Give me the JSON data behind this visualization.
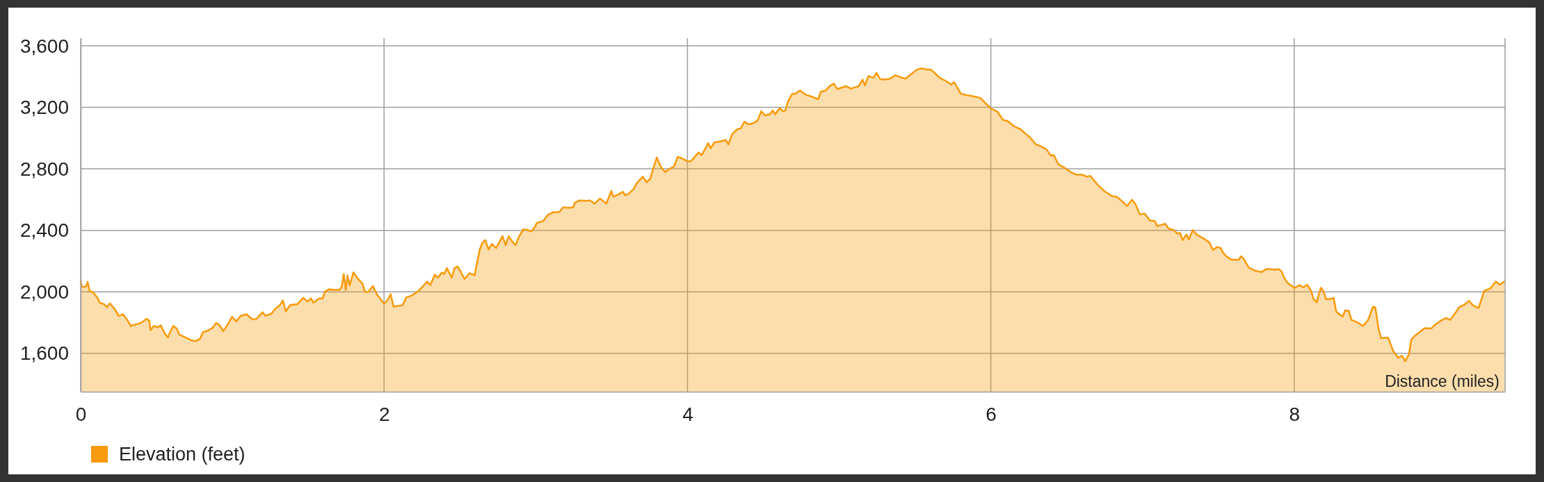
{
  "chart_data": {
    "type": "area",
    "xlabel": "Distance (miles)",
    "x": [
      0.0,
      0.008,
      0.033,
      0.046,
      0.059,
      0.079,
      0.107,
      0.126,
      0.155,
      0.174,
      0.193,
      0.222,
      0.251,
      0.28,
      0.308,
      0.331,
      0.366,
      0.404,
      0.433,
      0.452,
      0.461,
      0.481,
      0.509,
      0.528,
      0.553,
      0.576,
      0.586,
      0.611,
      0.634,
      0.649,
      0.691,
      0.73,
      0.758,
      0.787,
      0.806,
      0.844,
      0.873,
      0.893,
      0.912,
      0.94,
      0.969,
      0.998,
      1.026,
      1.055,
      1.093,
      1.132,
      1.16,
      1.199,
      1.218,
      1.256,
      1.285,
      1.314,
      1.333,
      1.352,
      1.38,
      1.428,
      1.467,
      1.495,
      1.518,
      1.534,
      1.572,
      1.595,
      1.61,
      1.639,
      1.667,
      1.705,
      1.721,
      1.734,
      1.748,
      1.759,
      1.773,
      1.798,
      1.825,
      1.859,
      1.874,
      1.897,
      1.926,
      1.955,
      2.0,
      2.022,
      2.043,
      2.063,
      2.088,
      2.122,
      2.147,
      2.18,
      2.222,
      2.255,
      2.284,
      2.305,
      2.334,
      2.355,
      2.38,
      2.397,
      2.414,
      2.447,
      2.464,
      2.484,
      2.505,
      2.53,
      2.564,
      2.597,
      2.63,
      2.647,
      2.667,
      2.689,
      2.711,
      2.739,
      2.781,
      2.801,
      2.822,
      2.847,
      2.867,
      2.889,
      2.917,
      2.947,
      2.972,
      2.997,
      3.006,
      3.048,
      3.081,
      3.115,
      3.156,
      3.181,
      3.215,
      3.248,
      3.256,
      3.29,
      3.331,
      3.356,
      3.389,
      3.423,
      3.465,
      3.498,
      3.511,
      3.548,
      3.573,
      3.59,
      3.615,
      3.648,
      3.665,
      3.706,
      3.731,
      3.756,
      3.773,
      3.798,
      3.823,
      3.853,
      3.878,
      3.911,
      3.936,
      3.962,
      3.995,
      4.02,
      4.037,
      4.053,
      4.075,
      4.095,
      4.137,
      4.153,
      4.178,
      4.215,
      4.253,
      4.27,
      4.295,
      4.328,
      4.353,
      4.375,
      4.403,
      4.437,
      4.462,
      4.487,
      4.512,
      4.545,
      4.562,
      4.579,
      4.609,
      4.629,
      4.646,
      4.662,
      4.692,
      4.712,
      4.742,
      4.779,
      4.821,
      4.862,
      4.879,
      4.912,
      4.937,
      4.966,
      4.987,
      5.046,
      5.079,
      5.104,
      5.129,
      5.154,
      5.171,
      5.193,
      5.226,
      5.246,
      5.271,
      5.296,
      5.329,
      5.371,
      5.404,
      5.438,
      5.471,
      5.513,
      5.546,
      5.579,
      5.604,
      5.629,
      5.663,
      5.705,
      5.738,
      5.758,
      5.771,
      5.802,
      5.847,
      5.88,
      5.93,
      5.963,
      6.0,
      6.042,
      6.08,
      6.113,
      6.155,
      6.197,
      6.23,
      6.255,
      6.297,
      6.322,
      6.364,
      6.397,
      6.414,
      6.447,
      6.48,
      6.522,
      6.564,
      6.605,
      6.631,
      6.656,
      6.706,
      6.748,
      6.798,
      6.831,
      6.864,
      6.898,
      6.931,
      6.956,
      6.981,
      7.014,
      7.048,
      7.081,
      7.098,
      7.123,
      7.148,
      7.173,
      7.206,
      7.231,
      7.248,
      7.265,
      7.29,
      7.306,
      7.331,
      7.356,
      7.406,
      7.44,
      7.465,
      7.49,
      7.515,
      7.531,
      7.552,
      7.585,
      7.635,
      7.648,
      7.668,
      7.701,
      7.743,
      7.784,
      7.818,
      7.877,
      7.895,
      7.917,
      7.933,
      7.955,
      7.982,
      8.0,
      8.018,
      8.035,
      8.06,
      8.085,
      8.11,
      8.127,
      8.149,
      8.16,
      8.177,
      8.194,
      8.21,
      8.244,
      8.26,
      8.277,
      8.319,
      8.336,
      8.36,
      8.377,
      8.419,
      8.452,
      8.486,
      8.502,
      8.519,
      8.535,
      8.555,
      8.572,
      8.619,
      8.652,
      8.686,
      8.711,
      8.732,
      8.756,
      8.772,
      8.794,
      8.828,
      8.861,
      8.903,
      8.927,
      8.969,
      9.003,
      9.028,
      9.053,
      9.086,
      9.12,
      9.153,
      9.178,
      9.216,
      9.253,
      9.295,
      9.329,
      9.354,
      9.386
    ],
    "series": [
      {
        "name": "Elevation (feet)",
        "color": "#f79a0b",
        "values": [
          2069,
          2032,
          2032,
          2064,
          2004,
          2000,
          1966,
          1929,
          1919,
          1900,
          1925,
          1891,
          1844,
          1854,
          1816,
          1778,
          1788,
          1801,
          1825,
          1812,
          1750,
          1778,
          1769,
          1782,
          1731,
          1703,
          1731,
          1778,
          1760,
          1722,
          1703,
          1684,
          1679,
          1694,
          1737,
          1750,
          1769,
          1797,
          1788,
          1744,
          1788,
          1838,
          1807,
          1844,
          1854,
          1820,
          1825,
          1867,
          1844,
          1857,
          1891,
          1914,
          1944,
          1872,
          1914,
          1919,
          1961,
          1937,
          1957,
          1929,
          1957,
          1957,
          2000,
          2017,
          2013,
          2013,
          2032,
          2116,
          2013,
          2107,
          2041,
          2126,
          2088,
          2051,
          2000,
          2000,
          2038,
          1980,
          1923,
          1944,
          1985,
          1903,
          1908,
          1912,
          1964,
          1974,
          2002,
          2034,
          2067,
          2043,
          2111,
          2092,
          2124,
          2116,
          2154,
          2092,
          2154,
          2165,
          2133,
          2083,
          2121,
          2108,
          2272,
          2317,
          2337,
          2275,
          2312,
          2285,
          2362,
          2304,
          2362,
          2324,
          2304,
          2357,
          2406,
          2402,
          2394,
          2427,
          2448,
          2460,
          2501,
          2517,
          2520,
          2550,
          2546,
          2550,
          2579,
          2595,
          2591,
          2595,
          2574,
          2607,
          2574,
          2656,
          2618,
          2635,
          2651,
          2628,
          2640,
          2672,
          2705,
          2749,
          2713,
          2738,
          2798,
          2874,
          2815,
          2779,
          2798,
          2815,
          2877,
          2869,
          2852,
          2847,
          2864,
          2885,
          2906,
          2890,
          2967,
          2934,
          2972,
          2978,
          2988,
          2959,
          3027,
          3057,
          3065,
          3106,
          3090,
          3098,
          3114,
          3175,
          3147,
          3155,
          3180,
          3155,
          3196,
          3175,
          3180,
          3237,
          3289,
          3289,
          3310,
          3283,
          3270,
          3253,
          3302,
          3310,
          3338,
          3355,
          3319,
          3338,
          3322,
          3331,
          3338,
          3381,
          3343,
          3404,
          3392,
          3425,
          3384,
          3381,
          3384,
          3409,
          3396,
          3387,
          3413,
          3446,
          3453,
          3446,
          3446,
          3425,
          3392,
          3371,
          3348,
          3364,
          3343,
          3289,
          3278,
          3273,
          3262,
          3229,
          3193,
          3173,
          3119,
          3109,
          3076,
          3057,
          3027,
          3008,
          2959,
          2950,
          2929,
          2885,
          2890,
          2828,
          2811,
          2782,
          2762,
          2762,
          2749,
          2754,
          2694,
          2656,
          2623,
          2618,
          2591,
          2558,
          2599,
          2566,
          2504,
          2509,
          2465,
          2460,
          2427,
          2435,
          2443,
          2411,
          2402,
          2378,
          2383,
          2337,
          2373,
          2340,
          2402,
          2373,
          2345,
          2321,
          2272,
          2291,
          2285,
          2255,
          2231,
          2209,
          2209,
          2231,
          2214,
          2157,
          2137,
          2128,
          2149,
          2144,
          2149,
          2133,
          2092,
          2059,
          2039,
          2026,
          2034,
          2043,
          2029,
          2046,
          2010,
          1953,
          1931,
          1977,
          2026,
          2002,
          1953,
          1953,
          1961,
          1871,
          1838,
          1879,
          1876,
          1817,
          1800,
          1778,
          1814,
          1854,
          1903,
          1898,
          1764,
          1699,
          1702,
          1617,
          1571,
          1584,
          1548,
          1592,
          1690,
          1712,
          1740,
          1764,
          1761,
          1784,
          1814,
          1830,
          1817,
          1849,
          1898,
          1915,
          1941,
          1912,
          1895,
          2007,
          2023,
          2067,
          2046,
          2067
        ]
      }
    ],
    "xlim": [
      0,
      9.39
    ],
    "ylim": [
      1350,
      3650
    ],
    "xticks": [
      0,
      2,
      4,
      6,
      8
    ],
    "yticks": [
      {
        "value": 1600,
        "label": "1,600"
      },
      {
        "value": 2000,
        "label": "2,000"
      },
      {
        "value": 2400,
        "label": "2,400"
      },
      {
        "value": 2800,
        "label": "2,800"
      },
      {
        "value": 3200,
        "label": "3,200"
      },
      {
        "value": 3600,
        "label": "3,600"
      }
    ],
    "grid": true,
    "legend": "bottom left"
  }
}
